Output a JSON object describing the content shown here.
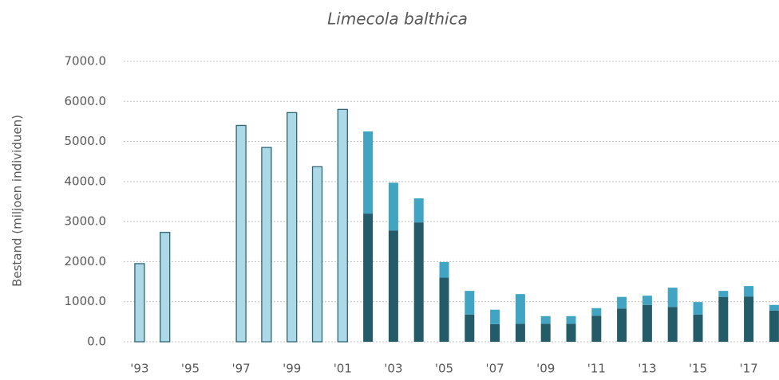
{
  "chart_data": {
    "type": "stacked-bar",
    "title": "Limecola balthica",
    "y_label": "Bestand (miljoen individuen)",
    "categories": [
      "'93",
      null,
      "'95",
      null,
      "'97",
      null,
      "'99",
      null,
      "'01",
      null,
      "'03",
      null,
      "'05",
      null,
      "'07",
      null,
      "'09",
      null,
      "'11",
      null,
      "'13",
      null,
      "'15",
      null,
      "'17",
      null
    ],
    "series": [
      {
        "color": "#add8e6",
        "values": [
          1950,
          2730,
          null,
          null,
          5400,
          4850,
          5720,
          4370,
          5800,
          null,
          null,
          null,
          null,
          null,
          null,
          null,
          null,
          null,
          null,
          null,
          null,
          null,
          null,
          null,
          null,
          null
        ]
      },
      {
        "color": "#235b69",
        "values": [
          null,
          null,
          null,
          null,
          null,
          null,
          null,
          null,
          null,
          3200,
          2780,
          2980,
          1600,
          680,
          440,
          450,
          450,
          450,
          650,
          830,
          920,
          870,
          680,
          1120,
          1130,
          780
        ]
      },
      {
        "color": "#40a4c2",
        "values": [
          null,
          null,
          null,
          null,
          null,
          null,
          null,
          null,
          null,
          2050,
          1190,
          600,
          390,
          590,
          360,
          740,
          190,
          190,
          190,
          290,
          230,
          480,
          310,
          150,
          260,
          140
        ]
      }
    ],
    "ylim": [
      0,
      7000
    ],
    "yticks": [
      {
        "value": 0,
        "label": "0.0"
      },
      {
        "value": 1000,
        "label": "1000.0"
      },
      {
        "value": 2000,
        "label": "2000.0"
      },
      {
        "value": 3000,
        "label": "3000.0"
      },
      {
        "value": 4000,
        "label": "4000.0"
      },
      {
        "value": 5000,
        "label": "5000.0"
      },
      {
        "value": 6000,
        "label": "6000.0"
      },
      {
        "value": 7000,
        "label": "7000.0"
      }
    ],
    "grid": true
  }
}
